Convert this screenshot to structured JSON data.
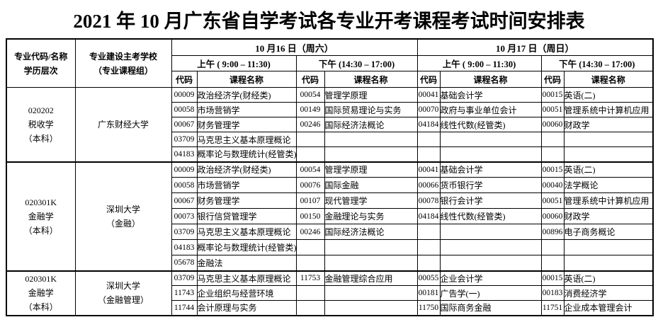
{
  "title": "2021 年 10 月广东省自学考试各专业开考课程考试时间安排表",
  "table": {
    "header": {
      "major_col": [
        "专业代码/名称",
        "学历层次"
      ],
      "school_col": [
        "专业建设主考学校",
        "（专业课程组）"
      ],
      "days": [
        {
          "label": "10 月16 日（周六）"
        },
        {
          "label": "10 月17 日（周日）"
        }
      ],
      "sessions": {
        "morning": "上午 ( 9:00 – 11:30)",
        "afternoon": "下午  (14:30 – 17:00)"
      },
      "code_label": "代码",
      "course_label": "课程名称"
    },
    "groups": [
      {
        "major": [
          "020202",
          "税收学",
          "（本科）"
        ],
        "school": [
          "广东财经大学"
        ],
        "rows": [
          [
            [
              "00009",
              "政治经济学(财经类)"
            ],
            [
              "00054",
              "管理学原理"
            ],
            [
              "00041",
              "基础会计学"
            ],
            [
              "00015",
              "英语(二)"
            ]
          ],
          [
            [
              "00058",
              "市场营销学"
            ],
            [
              "00149",
              "国际贸易理论与实务"
            ],
            [
              "00070",
              "政府与事业单位会计"
            ],
            [
              "00051",
              "管理系统中计算机应用"
            ]
          ],
          [
            [
              "00067",
              "财务管理学"
            ],
            [
              "00246",
              "国际经济法概论"
            ],
            [
              "04184",
              "线性代数(经管类)"
            ],
            [
              "00060",
              "财政学"
            ]
          ],
          [
            [
              "03709",
              "马克思主义基本原理概论"
            ],
            [
              "",
              ""
            ],
            [
              "",
              ""
            ],
            [
              "",
              ""
            ]
          ],
          [
            [
              "04183",
              "概率论与数理统计(经管类)"
            ],
            [
              "",
              ""
            ],
            [
              "",
              ""
            ],
            [
              "",
              ""
            ]
          ]
        ]
      },
      {
        "major": [
          "020301K",
          "金融学",
          "（本科）"
        ],
        "school": [
          "深圳大学",
          "（金融）"
        ],
        "rows": [
          [
            [
              "00009",
              "政治经济学(财经类)"
            ],
            [
              "00054",
              "管理学原理"
            ],
            [
              "00041",
              "基础会计学"
            ],
            [
              "00015",
              "英语(二)"
            ]
          ],
          [
            [
              "00058",
              "市场营销学"
            ],
            [
              "00076",
              "国际金融"
            ],
            [
              "00066",
              "货币银行学"
            ],
            [
              "00040",
              "法学概论"
            ]
          ],
          [
            [
              "00067",
              "财务管理学"
            ],
            [
              "00107",
              "现代管理学"
            ],
            [
              "00078",
              "银行会计学"
            ],
            [
              "00051",
              "管理系统中计算机应用"
            ]
          ],
          [
            [
              "00073",
              "银行信贷管理学"
            ],
            [
              "00150",
              "金融理论与实务"
            ],
            [
              "04184",
              "线性代数(经管类)"
            ],
            [
              "00060",
              "财政学"
            ]
          ],
          [
            [
              "03709",
              "马克思主义基本原理概论"
            ],
            [
              "00246",
              "国际经济法概论"
            ],
            [
              "",
              ""
            ],
            [
              "00896",
              "电子商务概论"
            ]
          ],
          [
            [
              "04183",
              "概率论与数理统计(经管类)"
            ],
            [
              "",
              ""
            ],
            [
              "",
              ""
            ],
            [
              "",
              ""
            ]
          ],
          [
            [
              "05678",
              "金融法"
            ],
            [
              "",
              ""
            ],
            [
              "",
              ""
            ],
            [
              "",
              ""
            ]
          ]
        ]
      },
      {
        "major": [
          "020301K",
          "金融学",
          "（本科）"
        ],
        "school": [
          "深圳大学",
          "（金融管理）"
        ],
        "rows": [
          [
            [
              "03709",
              "马克思主义基本原理概论"
            ],
            [
              "11753",
              "金融管理综合应用"
            ],
            [
              "00055",
              "企业会计学"
            ],
            [
              "00015",
              "英语(二)"
            ]
          ],
          [
            [
              "11743",
              "企业组织与经营环境"
            ],
            [
              "",
              ""
            ],
            [
              "00181",
              "广告学(一)"
            ],
            [
              "00183",
              "消费经济学"
            ]
          ],
          [
            [
              "11744",
              "会计原理与实务"
            ],
            [
              "",
              ""
            ],
            [
              "11750",
              "国际商务金融"
            ],
            [
              "11751",
              "企业成本管理会计"
            ]
          ]
        ]
      }
    ]
  }
}
